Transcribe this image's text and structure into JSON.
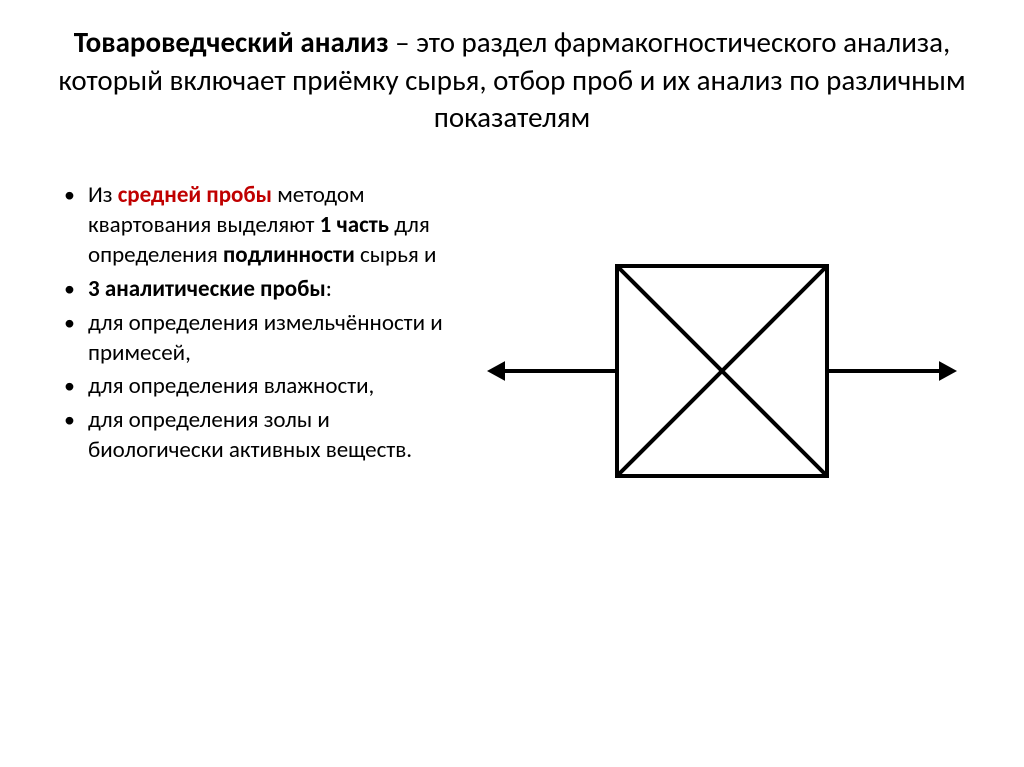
{
  "title": {
    "bold": "Товароведческий анализ",
    "rest": " – это раздел фармакогностического анализа, который включает приёмку сырья, отбор проб и их анализ по различным показателям"
  },
  "bullets": {
    "b1_pre": "Из ",
    "b1_red": "средней пробы",
    "b1_mid": " методом квартования выделяют ",
    "b1_one": "1 часть",
    "b1_mid2": " для определения ",
    "b1_auth": "подлинности",
    "b1_end": " сырья и",
    "b2": " 3 аналитические пробы",
    "b2_colon": ":",
    "b3": "для определения измельчённости и примесей,",
    "b4": "для определения влажности,",
    "b5": "для определения золы и биологически активных веществ."
  },
  "diagram": {
    "stroke": "#000000",
    "stroke_width": 4,
    "square_size": 210,
    "arrow_length": 130,
    "arrow_head": 18
  }
}
